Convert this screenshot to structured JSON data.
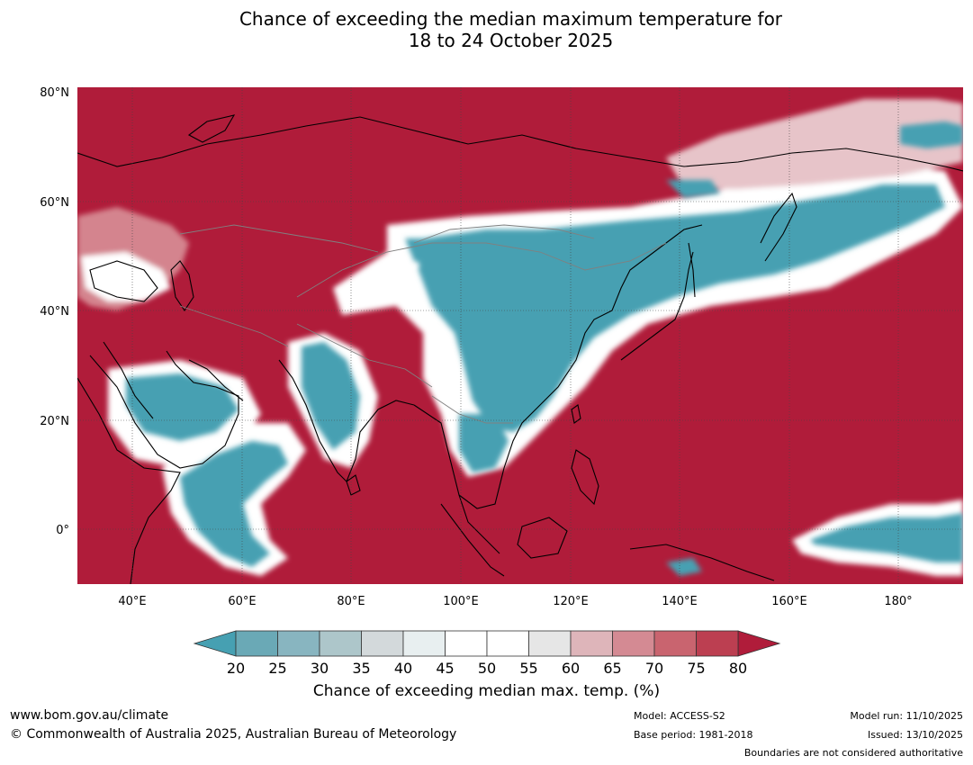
{
  "title": {
    "line1": "Chance of exceeding the median maximum temperature for",
    "line2": "18 to 24 October 2025"
  },
  "map": {
    "lon_range": [
      30,
      192
    ],
    "lat_range": [
      -10,
      80
    ],
    "lat_ticks": [
      {
        "value": 80,
        "label": "80°N"
      },
      {
        "value": 60,
        "label": "60°N"
      },
      {
        "value": 40,
        "label": "40°N"
      },
      {
        "value": 20,
        "label": "20°N"
      },
      {
        "value": 0,
        "label": "0°"
      }
    ],
    "lon_ticks": [
      {
        "value": 40,
        "label": "40°E"
      },
      {
        "value": 60,
        "label": "60°E"
      },
      {
        "value": 80,
        "label": "80°E"
      },
      {
        "value": 100,
        "label": "100°E"
      },
      {
        "value": 120,
        "label": "120°E"
      },
      {
        "value": 140,
        "label": "140°E"
      },
      {
        "value": 160,
        "label": "160°E"
      },
      {
        "value": 180,
        "label": "180°"
      }
    ],
    "colors": {
      "high": "#b01c3a",
      "low": "#46a0b2",
      "white": "#ffffff",
      "pink": "#d4848e",
      "coast": "#000000",
      "border": "#808080"
    }
  },
  "colorbar": {
    "levels": [
      "20",
      "25",
      "30",
      "35",
      "40",
      "45",
      "50",
      "55",
      "60",
      "65",
      "70",
      "75",
      "80"
    ],
    "colors": [
      "#6aa9b6",
      "#88b5c0",
      "#adc6ca",
      "#d3d9db",
      "#e8eff0",
      "#ffffff",
      "#ffffff",
      "#e6e6e6",
      "#deb5ba",
      "#d48a93",
      "#c9646f",
      "#bc3f51"
    ],
    "under_color": "#46a0b2",
    "over_color": "#b01c3a",
    "label": "Chance of exceeding median max. temp. (%)"
  },
  "footer": {
    "website": "www.bom.gov.au/climate",
    "copyright": "© Commonwealth of Australia 2025, Australian Bureau of Meteorology",
    "model": "Model: ACCESS-S2",
    "base_period": "Base period: 1981-2018",
    "model_run": "Model run: 11/10/2025",
    "issued": "Issued: 13/10/2025",
    "disclaimer": "Boundaries are not considered authoritative"
  }
}
